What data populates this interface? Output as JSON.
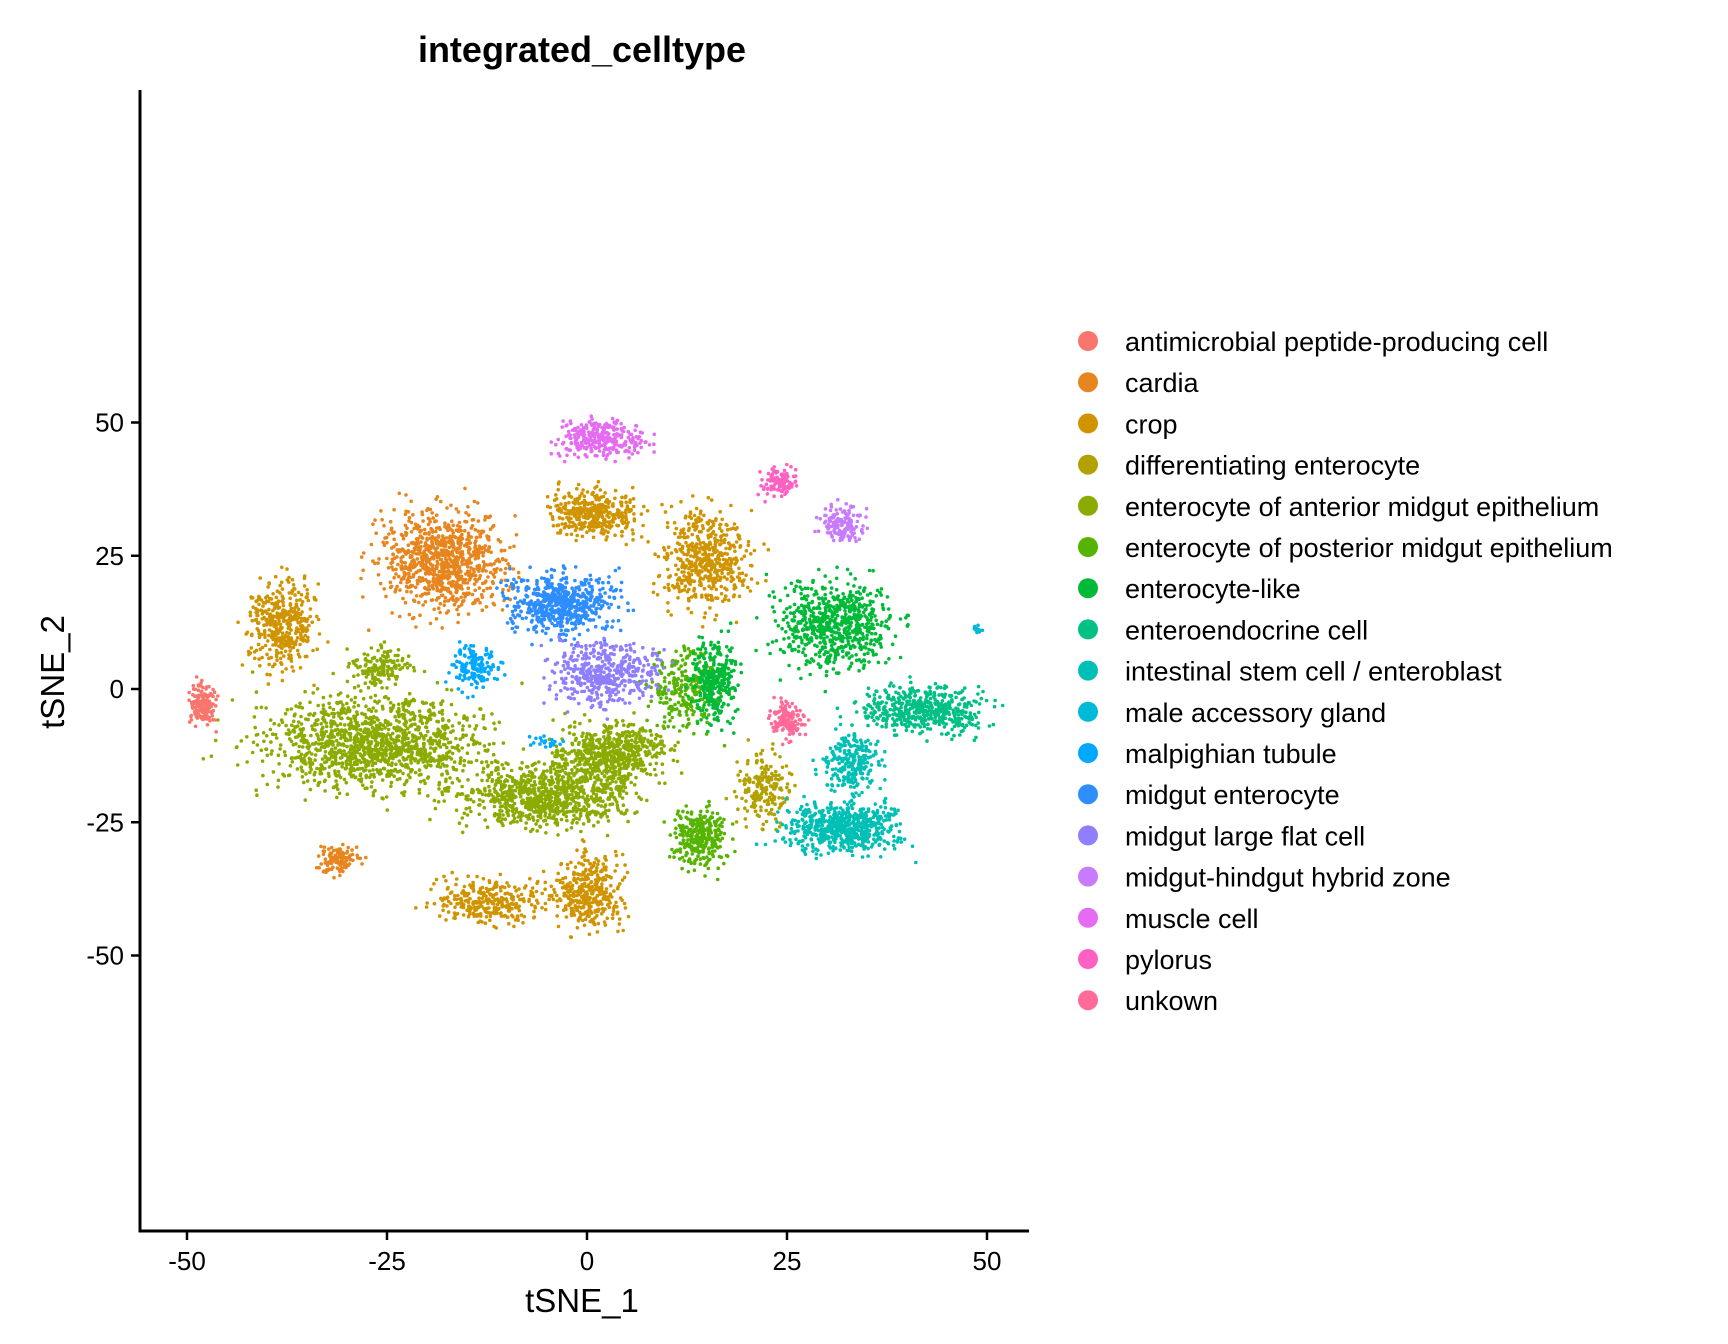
{
  "chart_data": {
    "type": "scatter",
    "title": "integrated_celltype",
    "xlabel": "tSNE_1",
    "ylabel": "tSNE_2",
    "xlim": [
      -55,
      55
    ],
    "ylim": [
      -51,
      56
    ],
    "xticks": [
      -50,
      -25,
      0,
      25,
      50
    ],
    "yticks": [
      -50,
      -25,
      0,
      25,
      50
    ],
    "grid": false,
    "legend_position": "right",
    "series": [
      {
        "name": "antimicrobial peptide-producing cell",
        "color": "#F8766D"
      },
      {
        "name": "cardia",
        "color": "#E7851E"
      },
      {
        "name": "crop",
        "color": "#D09400"
      },
      {
        "name": "differentiating enterocyte",
        "color": "#B2A100"
      },
      {
        "name": "enterocyte of anterior midgut epithelium",
        "color": "#8BAB00"
      },
      {
        "name": "enterocyte of posterior midgut epithelium",
        "color": "#55B400"
      },
      {
        "name": "enterocyte-like",
        "color": "#00BA38"
      },
      {
        "name": "enteroendocrine cell",
        "color": "#00C086"
      },
      {
        "name": "intestinal stem cell / enteroblast",
        "color": "#00C0B6"
      },
      {
        "name": "male accessory gland",
        "color": "#00B8D8"
      },
      {
        "name": "malpighian tubule",
        "color": "#00A9FF"
      },
      {
        "name": "midgut enterocyte",
        "color": "#2E8DFF"
      },
      {
        "name": "midgut large flat cell",
        "color": "#8F7EFF"
      },
      {
        "name": "midgut-hindgut hybrid zone",
        "color": "#C77CFF"
      },
      {
        "name": "muscle cell",
        "color": "#E56CF2"
      },
      {
        "name": "pylorus",
        "color": "#FF61C3"
      },
      {
        "name": "unkown",
        "color": "#FF6A98"
      }
    ],
    "clusters": [
      {
        "series": 0,
        "center": [
          -48,
          -3
        ],
        "spread": [
          1.6,
          3.5
        ],
        "n": 160
      },
      {
        "series": 1,
        "center": [
          -18,
          24
        ],
        "spread": [
          7,
          8
        ],
        "n": 900
      },
      {
        "series": 1,
        "center": [
          -31,
          -32
        ],
        "spread": [
          2.2,
          2.5
        ],
        "n": 110
      },
      {
        "series": 2,
        "center": [
          -38,
          12
        ],
        "spread": [
          3.5,
          7
        ],
        "n": 420
      },
      {
        "series": 2,
        "center": [
          1,
          33
        ],
        "spread": [
          5,
          4
        ],
        "n": 380
      },
      {
        "series": 2,
        "center": [
          15,
          24
        ],
        "spread": [
          5,
          8
        ],
        "n": 520
      },
      {
        "series": 2,
        "center": [
          -12,
          -40
        ],
        "spread": [
          6,
          3.5
        ],
        "n": 300
      },
      {
        "series": 2,
        "center": [
          0,
          -38
        ],
        "spread": [
          4,
          6
        ],
        "n": 380
      },
      {
        "series": 3,
        "center": [
          22,
          -18
        ],
        "spread": [
          3,
          6
        ],
        "n": 200
      },
      {
        "series": 4,
        "center": [
          -27,
          -10
        ],
        "spread": [
          12,
          8
        ],
        "n": 1300
      },
      {
        "series": 4,
        "center": [
          -5,
          -20
        ],
        "spread": [
          9,
          5
        ],
        "n": 900
      },
      {
        "series": 4,
        "center": [
          3,
          -12
        ],
        "spread": [
          6,
          5
        ],
        "n": 600
      },
      {
        "series": 4,
        "center": [
          -26,
          4
        ],
        "spread": [
          3,
          3
        ],
        "n": 150
      },
      {
        "series": 5,
        "center": [
          14,
          -28
        ],
        "spread": [
          3,
          5
        ],
        "n": 300
      },
      {
        "series": 5,
        "center": [
          12,
          0
        ],
        "spread": [
          4,
          7
        ],
        "n": 260
      },
      {
        "series": 6,
        "center": [
          16,
          2
        ],
        "spread": [
          2.5,
          7
        ],
        "n": 300
      },
      {
        "series": 6,
        "center": [
          31,
          12
        ],
        "spread": [
          6,
          7
        ],
        "n": 700
      },
      {
        "series": 7,
        "center": [
          42,
          -4
        ],
        "spread": [
          7,
          4
        ],
        "n": 500
      },
      {
        "series": 8,
        "center": [
          32,
          -26
        ],
        "spread": [
          6,
          4
        ],
        "n": 650
      },
      {
        "series": 8,
        "center": [
          33,
          -14
        ],
        "spread": [
          3,
          5
        ],
        "n": 250
      },
      {
        "series": 9,
        "center": [
          49,
          11
        ],
        "spread": [
          0.5,
          1
        ],
        "n": 10
      },
      {
        "series": 10,
        "center": [
          -14,
          4
        ],
        "spread": [
          2.5,
          3.5
        ],
        "n": 150
      },
      {
        "series": 10,
        "center": [
          -5,
          -10
        ],
        "spread": [
          2,
          1.5
        ],
        "n": 20
      },
      {
        "series": 11,
        "center": [
          -3,
          16
        ],
        "spread": [
          6,
          5
        ],
        "n": 600
      },
      {
        "series": 12,
        "center": [
          2,
          3
        ],
        "spread": [
          6,
          5
        ],
        "n": 450
      },
      {
        "series": 13,
        "center": [
          32,
          31
        ],
        "spread": [
          2.5,
          3
        ],
        "n": 140
      },
      {
        "series": 14,
        "center": [
          2,
          47
        ],
        "spread": [
          5,
          3
        ],
        "n": 300
      },
      {
        "series": 15,
        "center": [
          24,
          39
        ],
        "spread": [
          2,
          2.5
        ],
        "n": 110
      },
      {
        "series": 16,
        "center": [
          25,
          -6
        ],
        "spread": [
          1.8,
          3
        ],
        "n": 140
      }
    ]
  }
}
